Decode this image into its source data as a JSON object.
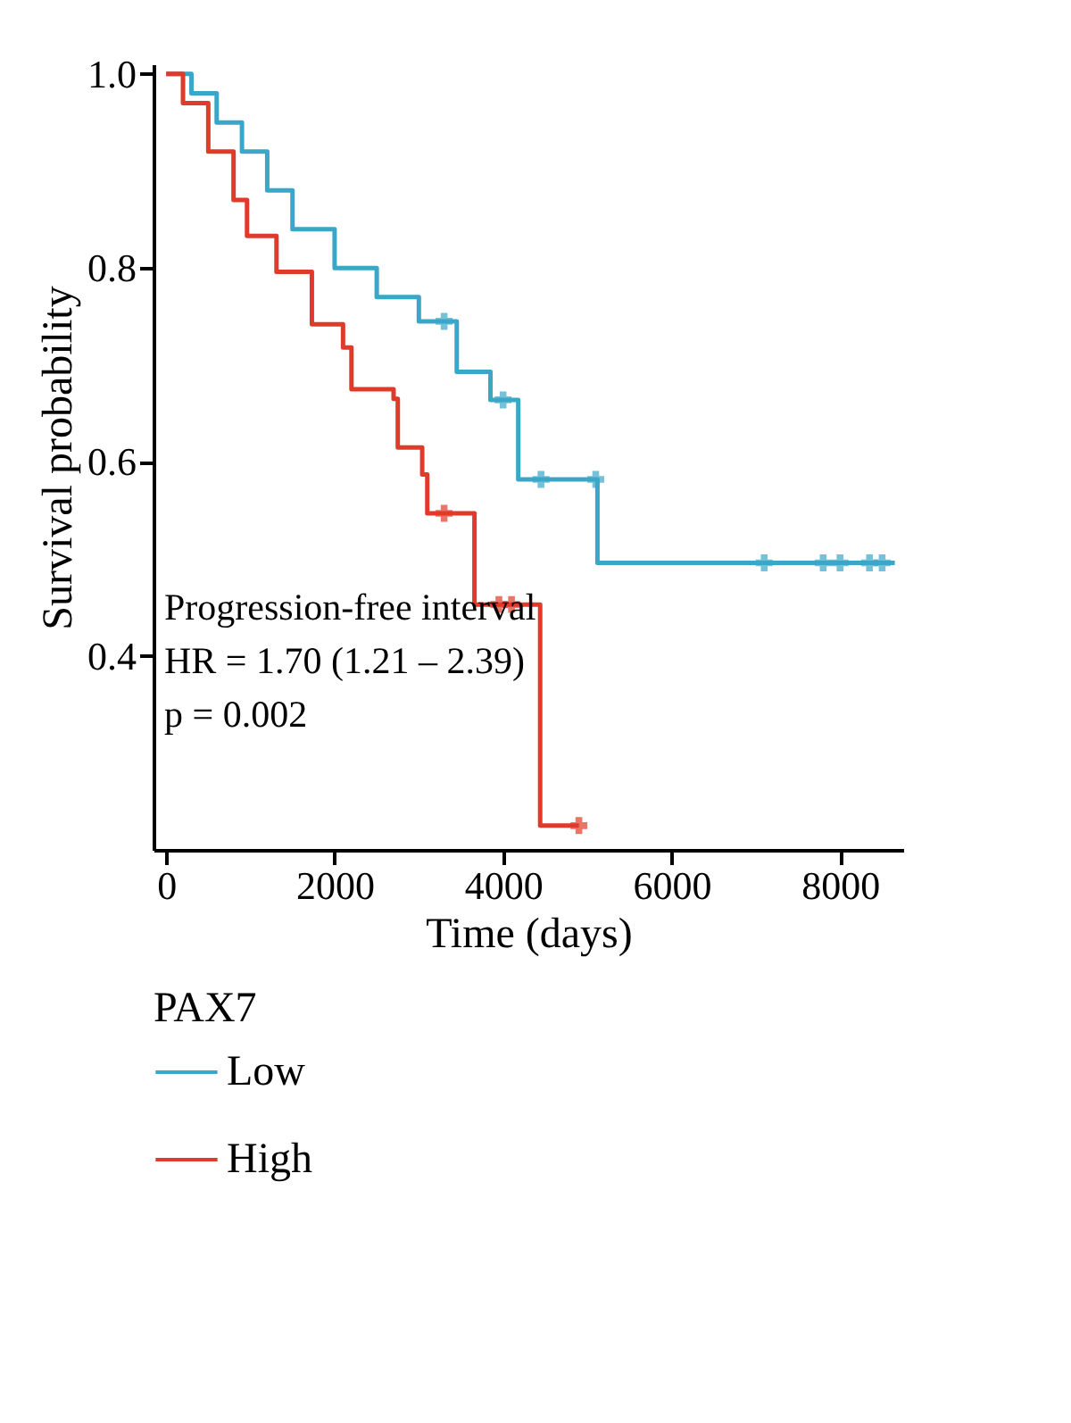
{
  "chart_data": {
    "type": "step",
    "xlabel": "Time (days)",
    "ylabel": "Survival probability",
    "legend_title": "PAX7",
    "xlim": [
      -150,
      8750
    ],
    "xticks": [
      0,
      {
        "value": 2000,
        "label": "2000"
      },
      {
        "value": 4000,
        "label": "4000"
      },
      {
        "value": 6000,
        "label": "6000"
      },
      {
        "value": 8000,
        "label": "8000"
      }
    ],
    "ylim": [
      0.2,
      1.01
    ],
    "yticks": [
      0.4,
      0.6,
      0.8,
      {
        "value": 1.0,
        "label": "1.0"
      }
    ],
    "grid": false,
    "legend": "bottom",
    "line_style": "solid",
    "annotations": [
      "Progression-free interval",
      "HR = 1.70 (1.21 – 2.39)",
      "p = 0.002"
    ],
    "series": [
      {
        "name": "Low",
        "color": "#3aa6c8",
        "x": [
          0,
          300,
          600,
          900,
          1200,
          1500,
          2000,
          2500,
          3000,
          3450,
          3850,
          4180,
          5120,
          8650
        ],
        "values": [
          1.0,
          0.98,
          0.95,
          0.92,
          0.88,
          0.84,
          0.8,
          0.77,
          0.745,
          0.693,
          0.664,
          0.582,
          0.496,
          0.496
        ]
      },
      {
        "name": "High",
        "color": "#e03a2a",
        "x": [
          0,
          200,
          500,
          800,
          960,
          1310,
          1730,
          2100,
          2200,
          2700,
          2750,
          3040,
          3100,
          3660,
          4440,
          4900
        ],
        "values": [
          1.0,
          0.97,
          0.92,
          0.87,
          0.833,
          0.796,
          0.742,
          0.718,
          0.675,
          0.665,
          0.615,
          0.587,
          0.547,
          0.453,
          0.225,
          0.225
        ]
      },
      {
        "type": "scatter",
        "marker": "cross",
        "color": "#3aa6c8",
        "x": [
          3300,
          4000,
          4450,
          5100,
          7100,
          7800,
          8000,
          8350,
          8500
        ],
        "values": [
          0.745,
          0.664,
          0.582,
          0.582,
          0.496,
          0.496,
          0.496,
          0.496,
          0.496
        ]
      },
      {
        "type": "scatter",
        "marker": "cross",
        "color": "#e03a2a",
        "x": [
          3300,
          3950,
          4100,
          4900
        ],
        "values": [
          0.547,
          0.453,
          0.453,
          0.225
        ]
      }
    ]
  }
}
